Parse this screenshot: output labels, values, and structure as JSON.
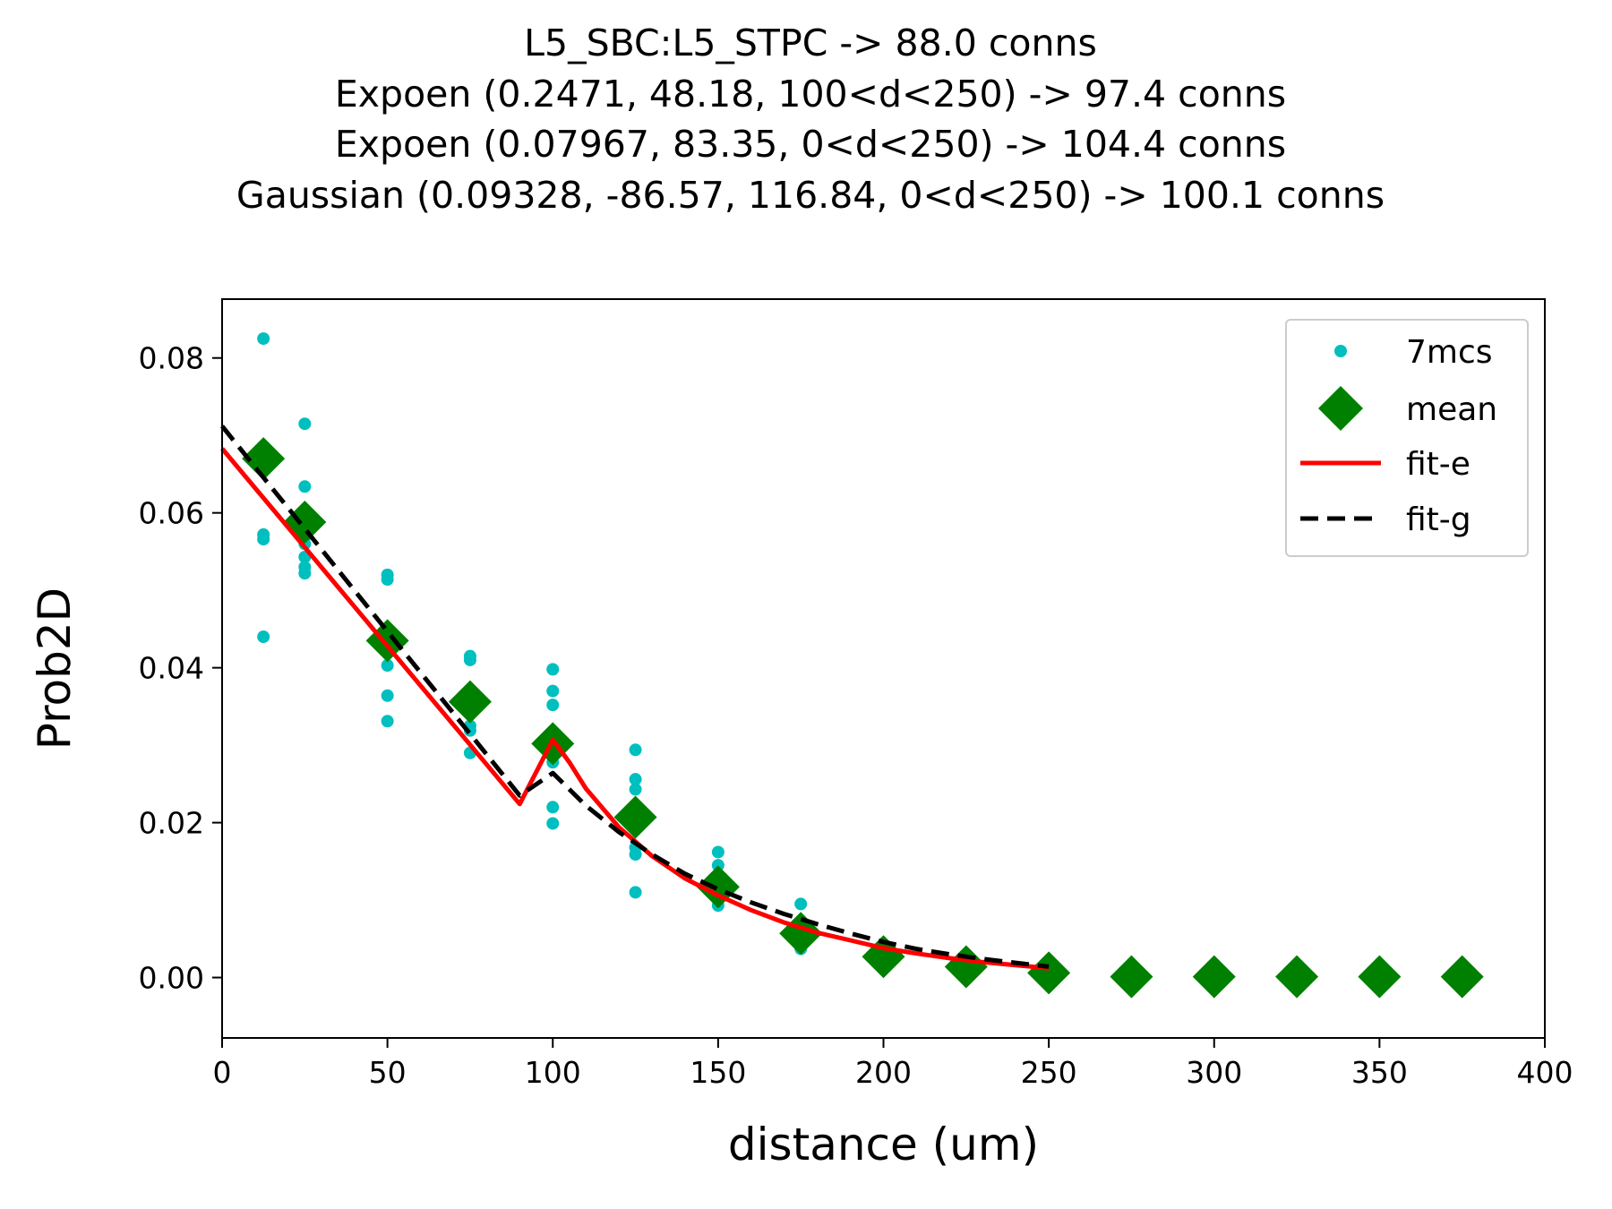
{
  "chart_data": {
    "type": "scatter",
    "title_lines": [
      "L5_SBC:L5_STPC -> 88.0 conns",
      "Expoen (0.2471, 48.18, 100<d<250) -> 97.4 conns",
      "Expoen (0.07967, 83.35, 0<d<250) -> 104.4 conns",
      "Gaussian (0.09328, -86.57, 116.84, 0<d<250) -> 100.1 conns"
    ],
    "xlabel": "distance (um)",
    "ylabel": "Prob2D",
    "xlim": [
      0,
      400
    ],
    "ylim": [
      -0.0078,
      0.0876
    ],
    "xticks": [
      0,
      50,
      100,
      150,
      200,
      250,
      300,
      350,
      400
    ],
    "xtick_labels": [
      "0",
      "50",
      "100",
      "150",
      "200",
      "250",
      "300",
      "350",
      "400"
    ],
    "yticks": [
      0.0,
      0.02,
      0.04,
      0.06,
      0.08
    ],
    "ytick_labels": [
      "0.00",
      "0.02",
      "0.04",
      "0.06",
      "0.08"
    ],
    "grid": false,
    "legend_position": "top-right",
    "series": [
      {
        "name": "7mcs",
        "kind": "points",
        "color": "#00bfbf",
        "points": [
          [
            12.5,
            0.0825
          ],
          [
            12.5,
            0.0572
          ],
          [
            12.5,
            0.0566
          ],
          [
            12.5,
            0.044
          ],
          [
            25,
            0.0715
          ],
          [
            25,
            0.0634
          ],
          [
            25,
            0.0569
          ],
          [
            25,
            0.056
          ],
          [
            25,
            0.0543
          ],
          [
            25,
            0.053
          ],
          [
            25,
            0.0522
          ],
          [
            50,
            0.052
          ],
          [
            50,
            0.0514
          ],
          [
            50,
            0.0403
          ],
          [
            50,
            0.0364
          ],
          [
            50,
            0.0331
          ],
          [
            75,
            0.0415
          ],
          [
            75,
            0.041
          ],
          [
            75,
            0.0345
          ],
          [
            75,
            0.0325
          ],
          [
            75,
            0.0319
          ],
          [
            75,
            0.029
          ],
          [
            100,
            0.0398
          ],
          [
            100,
            0.037
          ],
          [
            100,
            0.0352
          ],
          [
            100,
            0.0278
          ],
          [
            100,
            0.022
          ],
          [
            100,
            0.0199
          ],
          [
            125,
            0.0294
          ],
          [
            125,
            0.0256
          ],
          [
            125,
            0.0243
          ],
          [
            125,
            0.0168
          ],
          [
            125,
            0.0159
          ],
          [
            125,
            0.011
          ],
          [
            150,
            0.0162
          ],
          [
            150,
            0.0145
          ],
          [
            150,
            0.0125
          ],
          [
            150,
            0.0102
          ],
          [
            150,
            0.0093
          ],
          [
            175,
            0.0095
          ],
          [
            175,
            0.0073
          ],
          [
            175,
            0.0052
          ],
          [
            175,
            0.0037
          ]
        ]
      },
      {
        "name": "mean",
        "kind": "markers",
        "color": "#008000",
        "points": [
          [
            12.5,
            0.067
          ],
          [
            25,
            0.0588
          ],
          [
            50,
            0.0435
          ],
          [
            75,
            0.0356
          ],
          [
            100,
            0.0302
          ],
          [
            125,
            0.0207
          ],
          [
            150,
            0.0117
          ],
          [
            175,
            0.0057
          ],
          [
            200,
            0.0027
          ],
          [
            225,
            0.0014
          ],
          [
            250,
            0.0006
          ],
          [
            275,
            0.0001
          ],
          [
            300,
            0.0001
          ],
          [
            325,
            0.0001
          ],
          [
            350,
            0.0001
          ],
          [
            375,
            0.0001
          ]
        ]
      },
      {
        "name": "fit-e",
        "kind": "line",
        "color": "#ff0000",
        "points": [
          [
            0,
            0.0683
          ],
          [
            10,
            0.0632
          ],
          [
            20,
            0.0581
          ],
          [
            30,
            0.053
          ],
          [
            40,
            0.0479
          ],
          [
            50,
            0.0428
          ],
          [
            60,
            0.0377
          ],
          [
            70,
            0.0326
          ],
          [
            80,
            0.0275
          ],
          [
            90,
            0.0224
          ],
          [
            100,
            0.0307
          ],
          [
            105,
            0.0278
          ],
          [
            110,
            0.0244
          ],
          [
            120,
            0.0194
          ],
          [
            130,
            0.0157
          ],
          [
            140,
            0.0128
          ],
          [
            150,
            0.0106
          ],
          [
            160,
            0.0087
          ],
          [
            170,
            0.0071
          ],
          [
            180,
            0.0058
          ],
          [
            190,
            0.0048
          ],
          [
            200,
            0.0038
          ],
          [
            210,
            0.0031
          ],
          [
            220,
            0.0025
          ],
          [
            230,
            0.002
          ],
          [
            240,
            0.0016
          ],
          [
            250,
            0.0012
          ]
        ]
      },
      {
        "name": "fit-g",
        "kind": "dashed",
        "color": "#000000",
        "points": [
          [
            0,
            0.0712
          ],
          [
            10,
            0.0659
          ],
          [
            20,
            0.0606
          ],
          [
            30,
            0.0553
          ],
          [
            40,
            0.05
          ],
          [
            50,
            0.0447
          ],
          [
            60,
            0.0394
          ],
          [
            70,
            0.0341
          ],
          [
            80,
            0.0288
          ],
          [
            90,
            0.0235
          ],
          [
            100,
            0.0264
          ],
          [
            110,
            0.0222
          ],
          [
            120,
            0.0188
          ],
          [
            130,
            0.0159
          ],
          [
            140,
            0.0134
          ],
          [
            150,
            0.0114
          ],
          [
            160,
            0.0097
          ],
          [
            170,
            0.0082
          ],
          [
            180,
            0.0069
          ],
          [
            190,
            0.0057
          ],
          [
            200,
            0.0046
          ],
          [
            210,
            0.0037
          ],
          [
            220,
            0.003
          ],
          [
            230,
            0.0024
          ],
          [
            240,
            0.0019
          ],
          [
            250,
            0.0014
          ]
        ]
      }
    ]
  }
}
